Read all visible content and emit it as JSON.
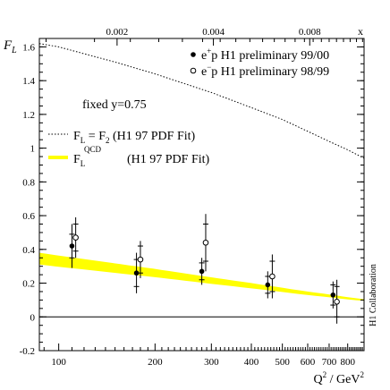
{
  "chart_data": {
    "type": "scatter",
    "xlabel": "Q",
    "xlabel_sup": "2",
    "xlabel_unit": "/ GeV",
    "xlabel_unit_sup": "2",
    "ylabel": "F",
    "ylabel_sub": "L",
    "x_scale": "log",
    "xlim": [
      87,
      900
    ],
    "ylim": [
      -0.2,
      1.65
    ],
    "x_ticks": [
      100,
      200,
      300,
      400,
      500,
      600,
      700,
      800
    ],
    "y_ticks": [
      "-0.2",
      "0",
      "0.2",
      "0.4",
      "0.6",
      "0.8",
      "1",
      "1.2",
      "1.4",
      "1.6"
    ],
    "top_axis_label": "x",
    "top_axis_ticks": [
      {
        "label": "0.002",
        "x": 0.002
      },
      {
        "label": "0.004",
        "x": 0.004
      },
      {
        "label": "0.008",
        "x": 0.008
      }
    ],
    "fixed_y_label": "fixed y=0.75",
    "collaboration": "H1 Collaboration",
    "legend_position": "top-right",
    "series": [
      {
        "name": "e+p H1 preliminary 99/00",
        "legend_main": "e",
        "legend_sup": "+",
        "legend_rest": "p H1 preliminary 99/00",
        "marker": "filled-circle",
        "points": [
          {
            "x": 110,
            "y": 0.42,
            "stat": 0.07,
            "tot": 0.13
          },
          {
            "x": 175,
            "y": 0.26,
            "stat": 0.08,
            "tot": 0.12
          },
          {
            "x": 280,
            "y": 0.27,
            "stat": 0.05,
            "tot": 0.08
          },
          {
            "x": 450,
            "y": 0.19,
            "stat": 0.05,
            "tot": 0.08
          },
          {
            "x": 720,
            "y": 0.13,
            "stat": 0.06,
            "tot": 0.08
          }
        ]
      },
      {
        "name": "e-p H1 preliminary 98/99",
        "legend_main": "e",
        "legend_sup": "−",
        "legend_rest": "p H1 preliminary 98/99",
        "marker": "open-circle",
        "points": [
          {
            "x": 113,
            "y": 0.47,
            "stat": 0.08,
            "tot": 0.12
          },
          {
            "x": 180,
            "y": 0.34,
            "stat": 0.08,
            "tot": 0.11
          },
          {
            "x": 288,
            "y": 0.44,
            "stat": 0.11,
            "tot": 0.17
          },
          {
            "x": 465,
            "y": 0.24,
            "stat": 0.09,
            "tot": 0.13
          },
          {
            "x": 740,
            "y": 0.09,
            "stat": 0.09,
            "tot": 0.13
          }
        ]
      }
    ],
    "curves": [
      {
        "name": "F_L = F_2 (H1 97 PDF Fit)",
        "legend_a": "F",
        "legend_a_sub": "L",
        "legend_mid": " = F",
        "legend_b_sub": "2",
        "legend_rest": "(H1 97 PDF Fit)",
        "style": "dotted",
        "color": "#000000",
        "points": [
          [
            87,
            1.62
          ],
          [
            100,
            1.6
          ],
          [
            150,
            1.51
          ],
          [
            200,
            1.44
          ],
          [
            300,
            1.33
          ],
          [
            400,
            1.24
          ],
          [
            500,
            1.17
          ],
          [
            600,
            1.1
          ],
          [
            700,
            1.04
          ],
          [
            800,
            0.99
          ],
          [
            900,
            0.94
          ]
        ]
      },
      {
        "name": "F_L^QCD (H1 97 PDF Fit)",
        "legend_a": "F",
        "legend_a_sub": "L",
        "legend_a_sup": "QCD",
        "legend_rest": "(H1 97 PDF Fit)",
        "style": "band",
        "color": "#ffff00",
        "points": [
          [
            87,
            0.345
          ],
          [
            100,
            0.33
          ],
          [
            200,
            0.26
          ],
          [
            300,
            0.215
          ],
          [
            400,
            0.185
          ],
          [
            500,
            0.16
          ],
          [
            600,
            0.14
          ],
          [
            700,
            0.125
          ],
          [
            800,
            0.11
          ],
          [
            900,
            0.1
          ]
        ],
        "half_width": [
          [
            87,
            0.035
          ],
          [
            900,
            0.005
          ]
        ]
      }
    ]
  }
}
